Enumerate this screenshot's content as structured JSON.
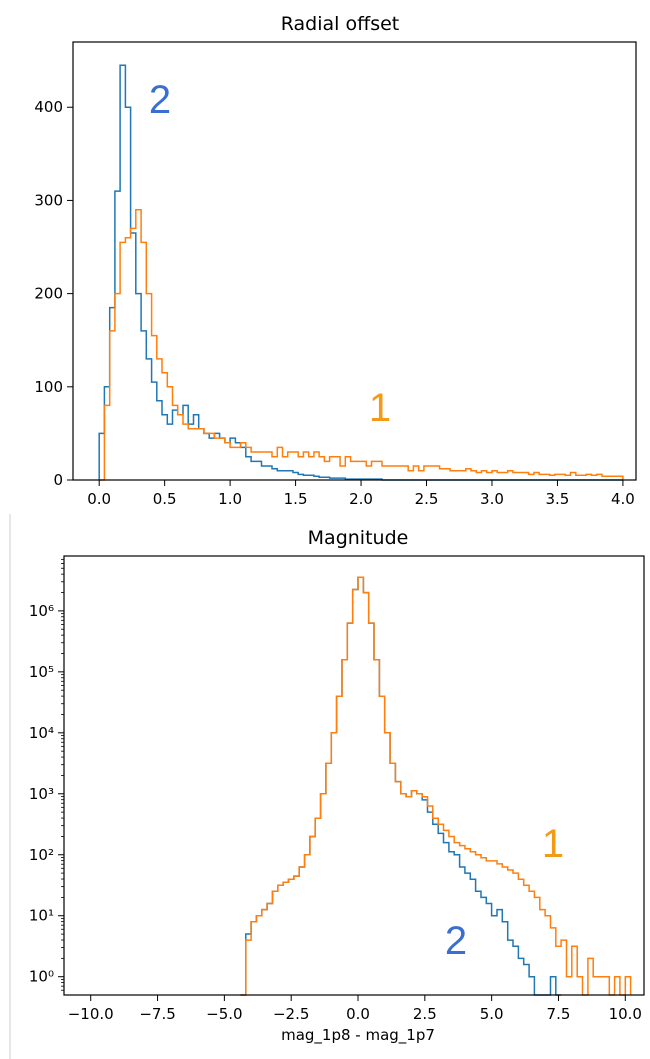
{
  "chart_data": [
    {
      "type": "histogram",
      "title": "Radial offset",
      "xlabel": "",
      "ylabel": "",
      "xlim": [
        -0.2,
        4.1
      ],
      "ylim": [
        0,
        470
      ],
      "xticks": [
        "0.0",
        "0.5",
        "1.0",
        "1.5",
        "2.0",
        "2.5",
        "3.0",
        "3.5",
        "4.0"
      ],
      "yticks": [
        "0",
        "100",
        "200",
        "300",
        "400"
      ],
      "bin_edges": {
        "start": 0.0,
        "step": 0.04
      },
      "series": [
        {
          "color": "#1f77b4",
          "values": [
            50,
            100,
            185,
            310,
            445,
            400,
            265,
            200,
            160,
            130,
            105,
            85,
            70,
            60,
            75,
            70,
            80,
            60,
            70,
            55,
            50,
            45,
            50,
            45,
            40,
            45,
            40,
            35,
            25,
            20,
            20,
            15,
            15,
            12,
            10,
            10,
            10,
            8,
            6,
            5,
            5,
            4,
            3,
            3,
            2,
            2,
            2,
            1,
            1,
            1,
            1,
            1,
            1,
            1,
            0,
            0,
            0,
            0,
            0,
            0,
            0,
            0,
            0,
            0,
            0,
            0,
            0,
            0,
            0,
            0,
            0,
            0,
            0,
            0,
            0,
            0,
            0,
            0,
            0,
            0,
            0,
            0,
            0,
            0,
            0,
            0,
            0,
            0,
            0,
            0,
            0,
            0,
            0,
            0,
            0,
            0,
            0,
            0,
            0,
            0
          ]
        },
        {
          "color": "#ff7f0e",
          "values": [
            0,
            80,
            160,
            200,
            255,
            260,
            270,
            290,
            255,
            200,
            155,
            130,
            115,
            100,
            80,
            70,
            60,
            55,
            55,
            55,
            50,
            50,
            45,
            45,
            40,
            35,
            35,
            40,
            35,
            30,
            30,
            30,
            30,
            25,
            35,
            25,
            30,
            30,
            25,
            30,
            25,
            30,
            25,
            20,
            25,
            25,
            15,
            25,
            20,
            20,
            20,
            15,
            20,
            20,
            15,
            15,
            15,
            15,
            15,
            10,
            15,
            10,
            15,
            15,
            15,
            12,
            12,
            10,
            10,
            10,
            12,
            10,
            8,
            10,
            8,
            10,
            8,
            8,
            10,
            8,
            8,
            8,
            6,
            8,
            6,
            6,
            5,
            6,
            6,
            5,
            8,
            5,
            5,
            6,
            5,
            6,
            4,
            4,
            4,
            4
          ]
        }
      ],
      "annotations": [
        {
          "text": "2",
          "series": 0
        },
        {
          "text": "1",
          "series": 1
        }
      ]
    },
    {
      "type": "histogram",
      "title": "Magnitude",
      "xlabel": "mag_1p8 - mag_1p7",
      "ylabel": "",
      "yscale": "log",
      "xlim": [
        -11,
        10.7
      ],
      "ylim_log10": [
        -0.3,
        6.9
      ],
      "xticks": [
        "−10.0",
        "−7.5",
        "−5.0",
        "−2.5",
        "0.0",
        "2.5",
        "5.0",
        "7.5",
        "10.0"
      ],
      "yticks": [
        "10⁰",
        "10¹",
        "10²",
        "10³",
        "10⁴",
        "10⁵",
        "10⁶"
      ],
      "x_tick_values": [
        -10,
        -7.5,
        -5,
        -2.5,
        0,
        2.5,
        5,
        7.5,
        10
      ],
      "bin_edges": {
        "start": -4.4,
        "step": 0.2
      },
      "series": [
        {
          "color": "#1f77b4",
          "log10_values": [
            -0.3,
            0.7,
            0.9,
            1.0,
            1.1,
            1.2,
            1.4,
            1.5,
            1.55,
            1.6,
            1.65,
            1.8,
            2.0,
            2.3,
            2.6,
            3.0,
            3.5,
            4.0,
            4.6,
            5.2,
            5.8,
            6.35,
            6.55,
            6.3,
            5.8,
            5.2,
            4.6,
            4.0,
            3.5,
            3.2,
            3.0,
            2.95,
            3.05,
            3.0,
            2.9,
            2.7,
            2.5,
            2.35,
            2.2,
            2.05,
            2.0,
            1.8,
            1.7,
            1.6,
            1.4,
            1.3,
            1.2,
            1.0,
            1.1,
            0.9,
            0.6,
            0.5,
            0.3,
            0.2,
            0.0,
            -0.3,
            -0.3,
            -0.3,
            0.0,
            -0.3
          ]
        },
        {
          "color": "#ff7f0e",
          "log10_values": [
            -0.3,
            0.6,
            0.9,
            1.0,
            1.1,
            1.2,
            1.4,
            1.5,
            1.55,
            1.6,
            1.65,
            1.8,
            2.0,
            2.3,
            2.6,
            3.0,
            3.5,
            4.0,
            4.6,
            5.2,
            5.8,
            6.35,
            6.55,
            6.3,
            5.8,
            5.2,
            4.6,
            4.0,
            3.5,
            3.2,
            3.0,
            2.95,
            3.05,
            3.0,
            2.95,
            2.8,
            2.6,
            2.5,
            2.4,
            2.3,
            2.2,
            2.15,
            2.1,
            2.05,
            2.0,
            1.95,
            1.9,
            1.9,
            1.85,
            1.8,
            1.75,
            1.7,
            1.6,
            1.5,
            1.4,
            1.3,
            1.1,
            1.0,
            0.8,
            0.5,
            0.6,
            0.0,
            0.5,
            0.0,
            -0.3,
            0.3,
            0.0,
            0.0,
            0.0,
            -0.3,
            0.0,
            -0.3,
            0.0
          ]
        }
      ],
      "annotations": [
        {
          "text": "1",
          "series": 1
        },
        {
          "text": "2",
          "series": 0
        }
      ]
    }
  ]
}
